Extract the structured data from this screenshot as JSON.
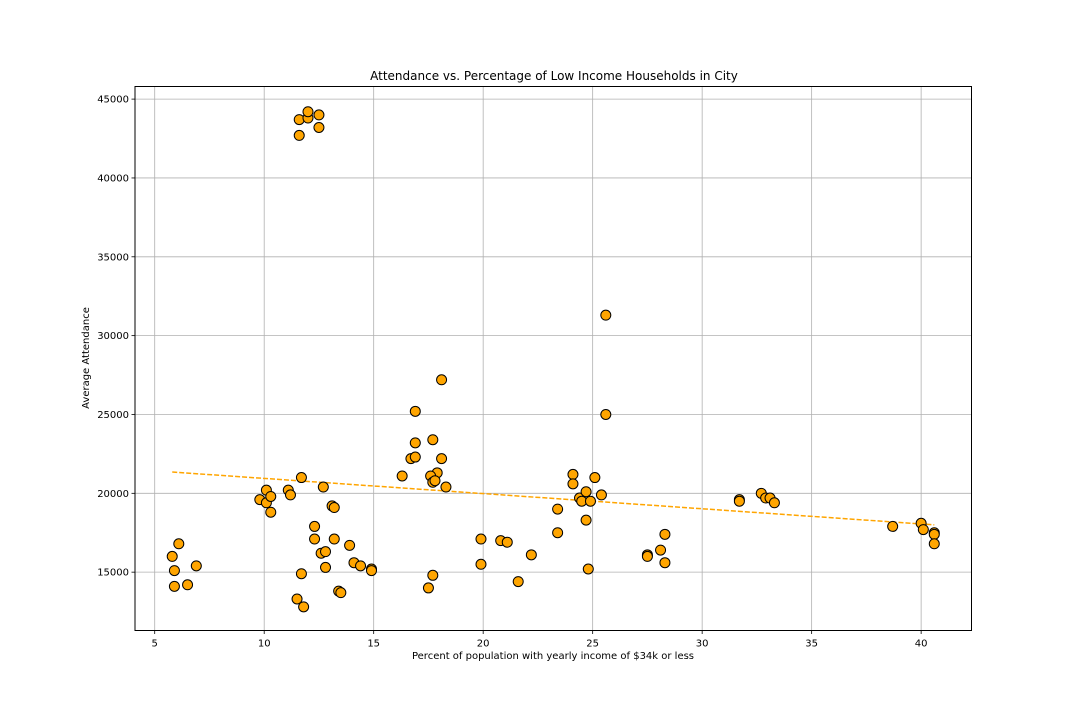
{
  "chart_data": {
    "type": "scatter",
    "title": "Attendance vs. Percentage of Low Income Households in City",
    "xlabel": "Percent of population with yearly income of $34k or less",
    "ylabel": "Average Attendance",
    "xlim": [
      4.1,
      42.3
    ],
    "ylim": [
      11300,
      45800
    ],
    "xticks": [
      5,
      10,
      15,
      20,
      25,
      30,
      35,
      40
    ],
    "yticks": [
      15000,
      20000,
      25000,
      30000,
      35000,
      40000,
      45000
    ],
    "grid": true,
    "colors": {
      "marker_fill": "#FFA500",
      "marker_edge": "#000000",
      "trend_line": "#FFA500",
      "grid": "#b0b0b0"
    },
    "trend_line": {
      "x": [
        5.8,
        40.6
      ],
      "y": [
        21350,
        18000
      ]
    },
    "points": [
      {
        "x": 11.6,
        "y": 43700
      },
      {
        "x": 12.0,
        "y": 43800
      },
      {
        "x": 12.0,
        "y": 44200
      },
      {
        "x": 12.5,
        "y": 44000
      },
      {
        "x": 11.6,
        "y": 42700
      },
      {
        "x": 12.5,
        "y": 43200
      },
      {
        "x": 25.6,
        "y": 31300
      },
      {
        "x": 18.1,
        "y": 27200
      },
      {
        "x": 16.9,
        "y": 25200
      },
      {
        "x": 25.6,
        "y": 25000
      },
      {
        "x": 17.7,
        "y": 23400
      },
      {
        "x": 16.9,
        "y": 23200
      },
      {
        "x": 16.7,
        "y": 22200
      },
      {
        "x": 16.9,
        "y": 22300
      },
      {
        "x": 18.1,
        "y": 22200
      },
      {
        "x": 17.9,
        "y": 21300
      },
      {
        "x": 16.3,
        "y": 21100
      },
      {
        "x": 17.6,
        "y": 21100
      },
      {
        "x": 17.7,
        "y": 20700
      },
      {
        "x": 17.8,
        "y": 20800
      },
      {
        "x": 18.3,
        "y": 20400
      },
      {
        "x": 11.7,
        "y": 21000
      },
      {
        "x": 12.7,
        "y": 20400
      },
      {
        "x": 11.1,
        "y": 20200
      },
      {
        "x": 11.2,
        "y": 19900
      },
      {
        "x": 9.8,
        "y": 19600
      },
      {
        "x": 10.1,
        "y": 20200
      },
      {
        "x": 10.1,
        "y": 19400
      },
      {
        "x": 10.3,
        "y": 19800
      },
      {
        "x": 10.3,
        "y": 18800
      },
      {
        "x": 13.1,
        "y": 19200
      },
      {
        "x": 13.2,
        "y": 19100
      },
      {
        "x": 12.3,
        "y": 17900
      },
      {
        "x": 12.3,
        "y": 17100
      },
      {
        "x": 13.2,
        "y": 17100
      },
      {
        "x": 13.9,
        "y": 16700
      },
      {
        "x": 12.6,
        "y": 16200
      },
      {
        "x": 12.8,
        "y": 16300
      },
      {
        "x": 14.1,
        "y": 15600
      },
      {
        "x": 14.4,
        "y": 15400
      },
      {
        "x": 12.8,
        "y": 15300
      },
      {
        "x": 14.9,
        "y": 15200
      },
      {
        "x": 14.9,
        "y": 15100
      },
      {
        "x": 11.7,
        "y": 14900
      },
      {
        "x": 13.4,
        "y": 13800
      },
      {
        "x": 13.5,
        "y": 13700
      },
      {
        "x": 11.5,
        "y": 13300
      },
      {
        "x": 11.8,
        "y": 12800
      },
      {
        "x": 6.1,
        "y": 16800
      },
      {
        "x": 5.8,
        "y": 16000
      },
      {
        "x": 6.9,
        "y": 15400
      },
      {
        "x": 5.9,
        "y": 15100
      },
      {
        "x": 5.9,
        "y": 14100
      },
      {
        "x": 6.5,
        "y": 14200
      },
      {
        "x": 17.7,
        "y": 14800
      },
      {
        "x": 17.5,
        "y": 14000
      },
      {
        "x": 19.9,
        "y": 17100
      },
      {
        "x": 20.8,
        "y": 17000
      },
      {
        "x": 21.1,
        "y": 16900
      },
      {
        "x": 22.2,
        "y": 16100
      },
      {
        "x": 19.9,
        "y": 15500
      },
      {
        "x": 21.6,
        "y": 14400
      },
      {
        "x": 23.4,
        "y": 19000
      },
      {
        "x": 23.4,
        "y": 17500
      },
      {
        "x": 24.1,
        "y": 21200
      },
      {
        "x": 24.1,
        "y": 20600
      },
      {
        "x": 25.1,
        "y": 21000
      },
      {
        "x": 25.4,
        "y": 19900
      },
      {
        "x": 24.4,
        "y": 19700
      },
      {
        "x": 24.5,
        "y": 19500
      },
      {
        "x": 24.7,
        "y": 20100
      },
      {
        "x": 24.9,
        "y": 19500
      },
      {
        "x": 24.7,
        "y": 18300
      },
      {
        "x": 24.8,
        "y": 15200
      },
      {
        "x": 28.3,
        "y": 17400
      },
      {
        "x": 28.1,
        "y": 16400
      },
      {
        "x": 27.5,
        "y": 16100
      },
      {
        "x": 27.5,
        "y": 16000
      },
      {
        "x": 28.3,
        "y": 15600
      },
      {
        "x": 31.7,
        "y": 19600
      },
      {
        "x": 31.7,
        "y": 19500
      },
      {
        "x": 32.7,
        "y": 20000
      },
      {
        "x": 32.9,
        "y": 19700
      },
      {
        "x": 33.1,
        "y": 19700
      },
      {
        "x": 33.3,
        "y": 19400
      },
      {
        "x": 38.7,
        "y": 17900
      },
      {
        "x": 40.0,
        "y": 18100
      },
      {
        "x": 40.1,
        "y": 17700
      },
      {
        "x": 40.6,
        "y": 17500
      },
      {
        "x": 40.6,
        "y": 17400
      },
      {
        "x": 40.6,
        "y": 16800
      }
    ]
  }
}
